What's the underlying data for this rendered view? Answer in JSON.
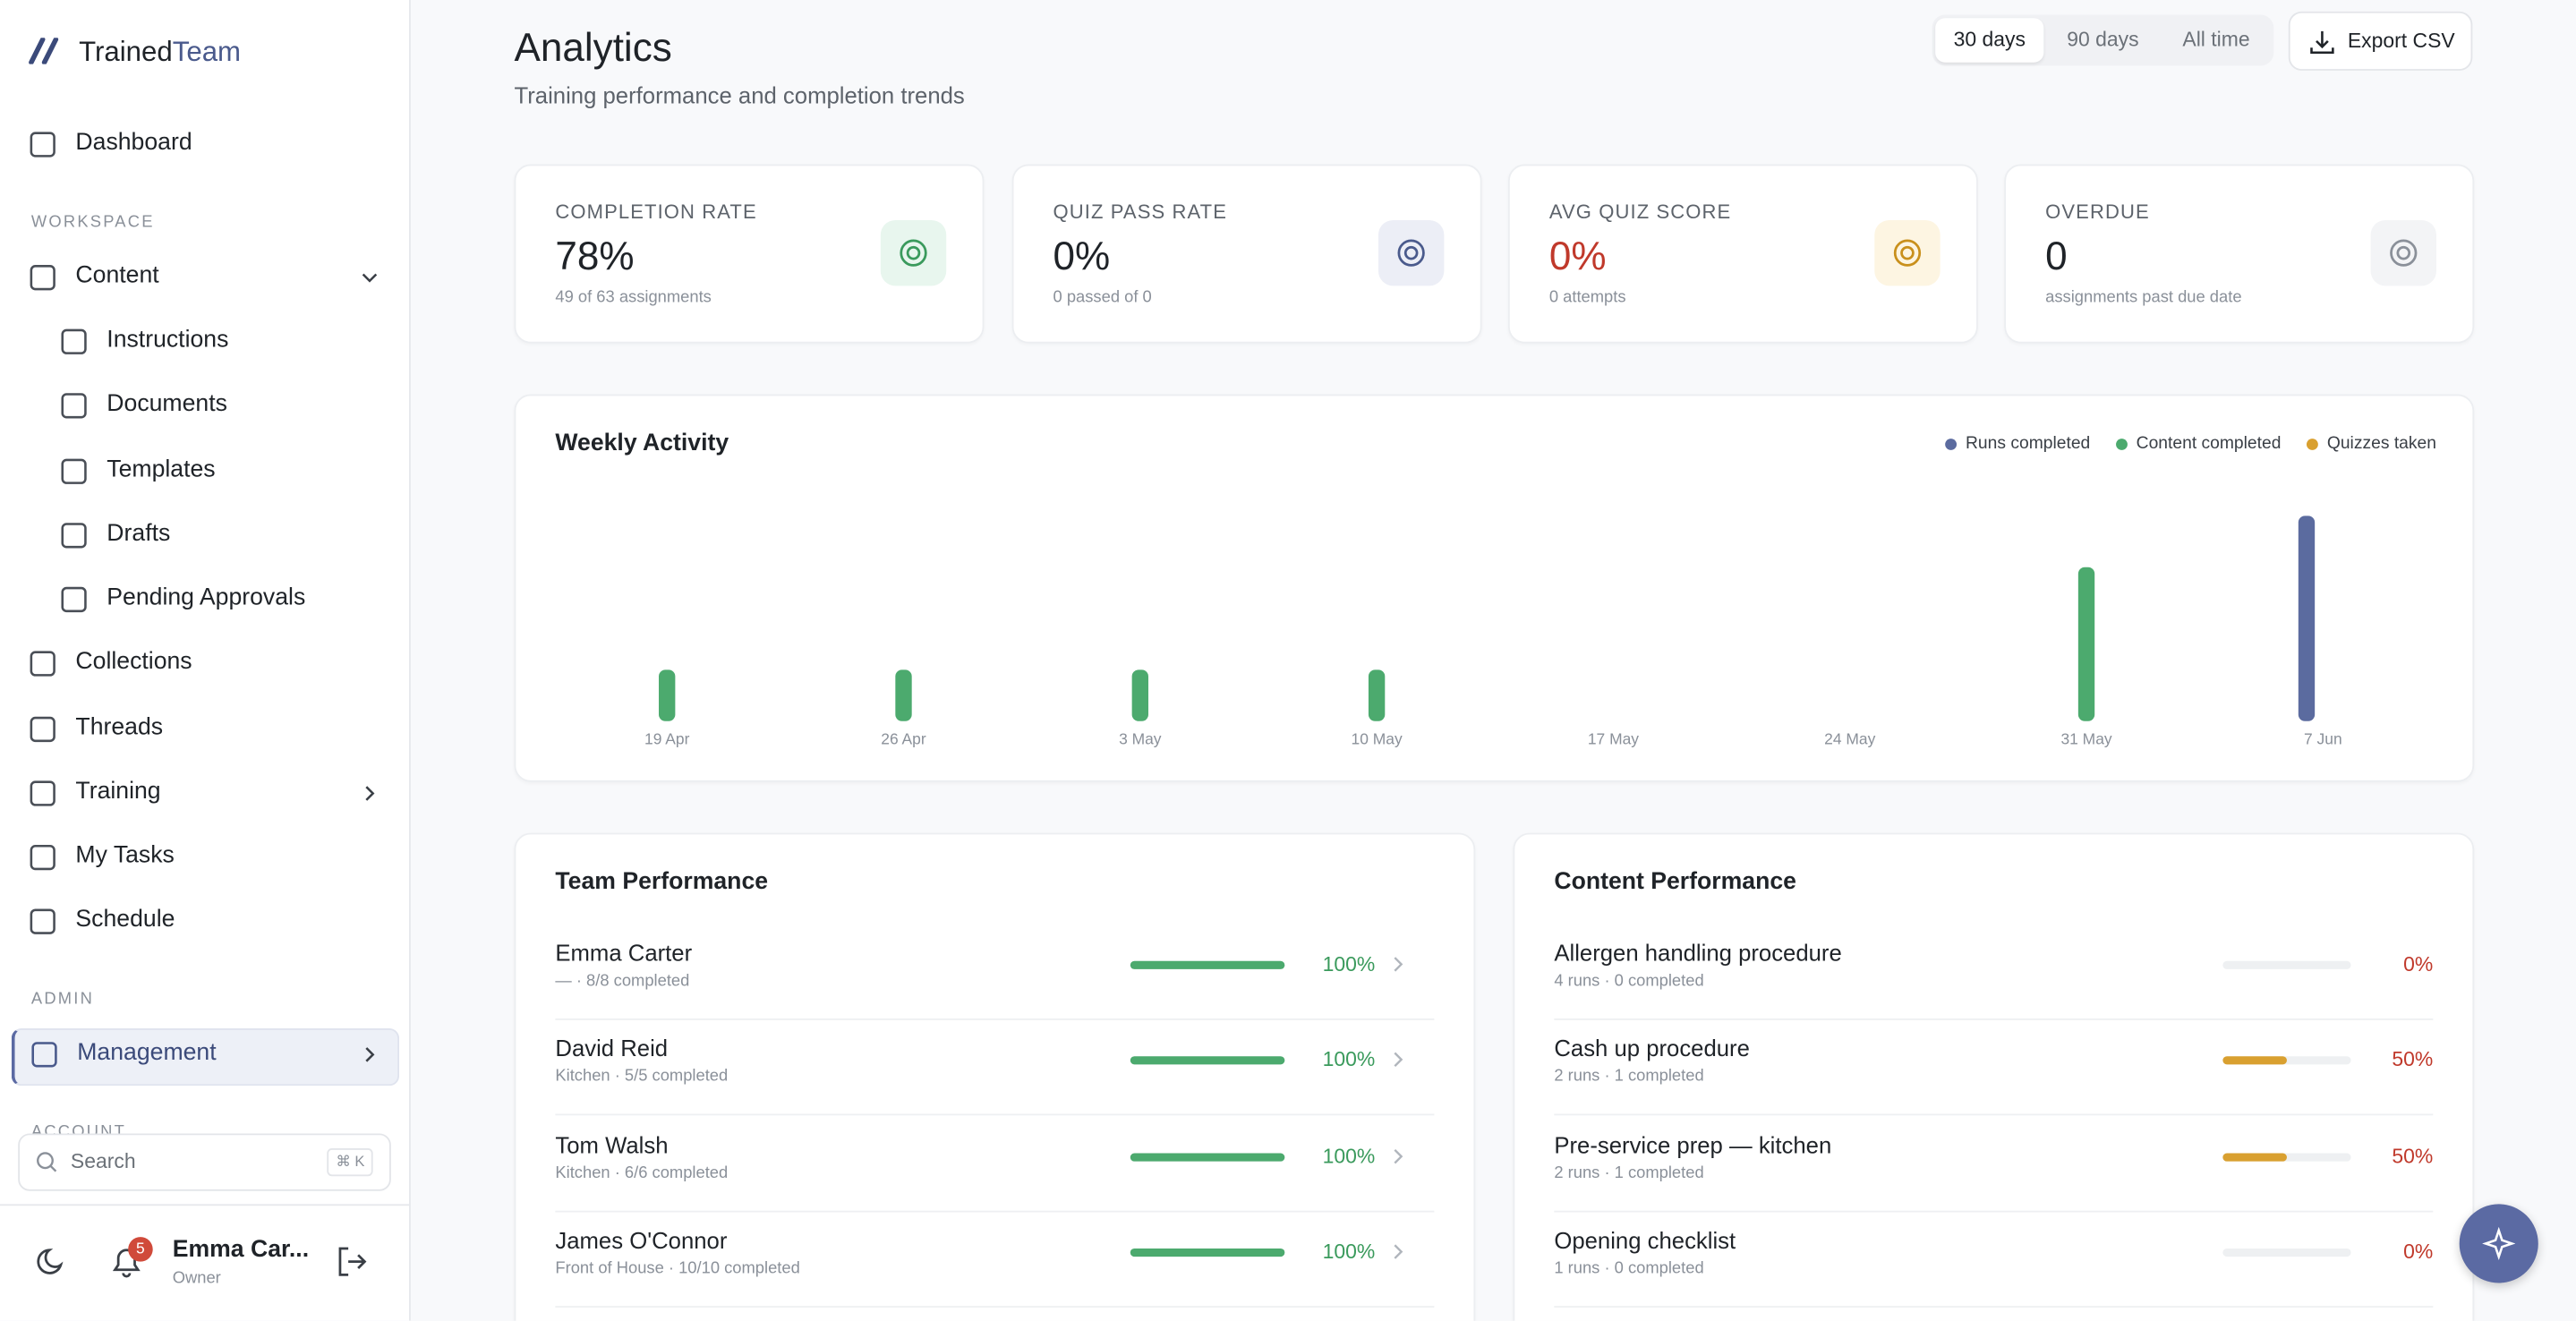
{
  "sidebar": {
    "brand_primary": "Trained",
    "brand_secondary": "Team",
    "nav": [
      {
        "label": "Dashboard"
      },
      {
        "section": "WORKSPACE"
      },
      {
        "label": "Content",
        "expand": "down"
      },
      {
        "label": "Instructions",
        "sub": true
      },
      {
        "label": "Documents",
        "sub": true
      },
      {
        "label": "Templates",
        "sub": true
      },
      {
        "label": "Drafts",
        "sub": true
      },
      {
        "label": "Pending Approvals",
        "sub": true
      },
      {
        "label": "Collections"
      },
      {
        "label": "Threads"
      },
      {
        "label": "Training",
        "expand": "right"
      },
      {
        "label": "My Tasks"
      },
      {
        "label": "Schedule"
      },
      {
        "section": "ADMIN"
      },
      {
        "label": "Management",
        "expand": "right",
        "active": true
      },
      {
        "section": "ACCOUNT"
      }
    ],
    "search": "Search",
    "shortcut": "⌘ K",
    "notifications": "5",
    "user_name": "Emma Car...",
    "user_role": "Owner"
  },
  "header": {
    "title": "Analytics",
    "subtitle": "Training performance and completion trends",
    "ranges": [
      "30 days",
      "90 days",
      "All time"
    ],
    "export": "Export CSV"
  },
  "stats": [
    {
      "label": "COMPLETION RATE",
      "value": "78%",
      "sub": "49 of 63 assignments"
    },
    {
      "label": "QUIZ PASS RATE",
      "value": "0%",
      "sub": "0 passed of 0"
    },
    {
      "label": "AVG QUIZ SCORE",
      "value": "0%",
      "sub": "0 attempts"
    },
    {
      "label": "OVERDUE",
      "value": "0",
      "sub": "assignments past due date"
    }
  ],
  "chart_data": {
    "type": "bar",
    "title": "Weekly Activity",
    "categories": [
      "19 Apr",
      "26 Apr",
      "3 May",
      "10 May",
      "17 May",
      "24 May",
      "31 May",
      "7 Jun"
    ],
    "series": [
      {
        "name": "Runs completed",
        "color": "#5b6b9f",
        "values": [
          0,
          0,
          0,
          0,
          0,
          0,
          0,
          4
        ]
      },
      {
        "name": "Content completed",
        "color": "#4caa6e",
        "values": [
          1,
          1,
          1,
          1,
          0,
          0,
          3,
          0
        ]
      },
      {
        "name": "Quizzes taken",
        "color": "#d9a030",
        "values": [
          0,
          0,
          0,
          0,
          0,
          0,
          0,
          0
        ]
      }
    ]
  },
  "team_performance": {
    "title": "Team Performance",
    "rows": [
      {
        "name": "Emma Carter",
        "meta": "— · 8/8 completed",
        "value": 100,
        "label": "100%"
      },
      {
        "name": "David Reid",
        "meta": "Kitchen · 5/5 completed",
        "value": 100,
        "label": "100%"
      },
      {
        "name": "Tom Walsh",
        "meta": "Kitchen · 6/6 completed",
        "value": 100,
        "label": "100%"
      },
      {
        "name": "James O'Connor",
        "meta": "Front of House · 10/10 completed",
        "value": 100,
        "label": "100%"
      }
    ]
  },
  "content_performance": {
    "title": "Content Performance",
    "rows": [
      {
        "name": "Allergen handling procedure",
        "meta": "4 runs · 0 completed",
        "value": 0,
        "label": "0%"
      },
      {
        "name": "Cash up procedure",
        "meta": "2 runs · 1 completed",
        "value": 50,
        "label": "50%"
      },
      {
        "name": "Pre-service prep — kitchen",
        "meta": "2 runs · 1 completed",
        "value": 50,
        "label": "50%"
      },
      {
        "name": "Opening checklist",
        "meta": "1 runs · 0 completed",
        "value": 0,
        "label": "0%"
      }
    ]
  }
}
